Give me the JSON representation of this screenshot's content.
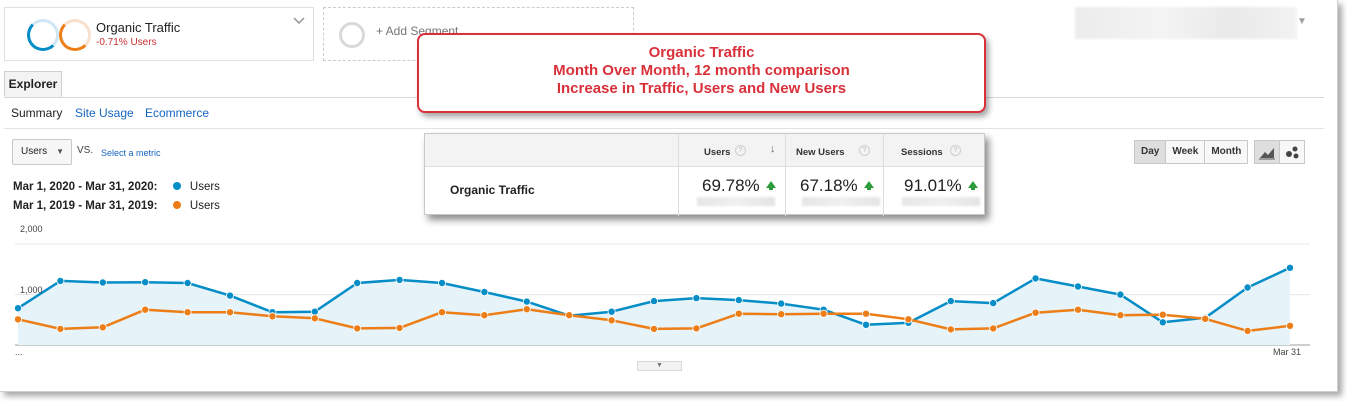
{
  "segment": {
    "title": "Organic Traffic",
    "subtitle": "-0.71% Users",
    "add_label": "+ Add Segment"
  },
  "tabs": {
    "explorer": "Explorer",
    "subtabs": [
      "Summary",
      "Site Usage",
      "Ecommerce"
    ]
  },
  "controls": {
    "metric": "Users",
    "vs": "VS.",
    "select_metric": "Select a metric",
    "views": [
      "Day",
      "Week",
      "Month"
    ],
    "active_view": "Day"
  },
  "legend": {
    "range_current": "Mar 1, 2020 - Mar 31, 2020:",
    "range_previous": "Mar 1, 2019 - Mar 31, 2019:",
    "label_current": "Users",
    "label_previous": "Users"
  },
  "callout": {
    "line1": "Organic Traffic",
    "line2": "Month Over Month, 12 month comparison",
    "line3": "Increase in Traffic, Users and New Users"
  },
  "table": {
    "row_label": "Organic Traffic",
    "columns": [
      {
        "header": "Users",
        "value": "69.78%",
        "help": "?"
      },
      {
        "header": "New Users",
        "value": "67.18%",
        "help": "?"
      },
      {
        "header": "Sessions",
        "value": "91.01%",
        "help": "?"
      }
    ],
    "sort_arrow": "↓"
  },
  "colors": {
    "current": "#058dc7",
    "previous": "#ed7e17",
    "callout": "#d9303a",
    "increase": "#2e9b3a"
  },
  "chart_data": {
    "type": "line",
    "ytick_labels": [
      "2,000",
      "1,000"
    ],
    "yticks": [
      2000,
      1000
    ],
    "ylim": [
      0,
      2300
    ],
    "xtick_labels": [
      "...",
      "Mar 31"
    ],
    "grid": true,
    "series": [
      {
        "name": "Users",
        "range": "Mar 1, 2020 - Mar 31, 2020",
        "values": [
          730,
          1270,
          1240,
          1245,
          1230,
          980,
          650,
          660,
          1230,
          1290,
          1230,
          1050,
          860,
          580,
          660,
          870,
          930,
          890,
          820,
          700,
          400,
          440,
          870,
          830,
          1320,
          1160,
          1000,
          450,
          540,
          1140,
          1530
        ]
      },
      {
        "name": "Users",
        "range": "Mar 1, 2019 - Mar 31, 2019",
        "values": [
          510,
          320,
          350,
          700,
          650,
          650,
          570,
          530,
          330,
          340,
          650,
          590,
          710,
          590,
          490,
          320,
          330,
          620,
          610,
          620,
          620,
          510,
          310,
          330,
          640,
          700,
          590,
          600,
          520,
          280,
          380
        ]
      }
    ]
  }
}
